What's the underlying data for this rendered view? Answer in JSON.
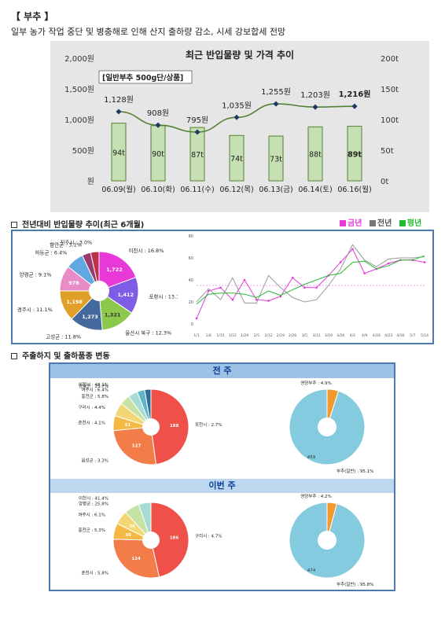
{
  "header": {
    "title": "【 부추 】",
    "subtitle": "일부 농가 작업 중단 및 병충해로 인해 산지 출하량 감소, 시세 강보합세 전망"
  },
  "chart_main": {
    "title": "최근 반입물량 및 가격 추이",
    "note": "[일반부추 500g단/상품]",
    "left_ticks": [
      "2,000원",
      "1,500원",
      "1,000원",
      "500원",
      "원"
    ],
    "right_ticks": [
      "200t",
      "150t",
      "100t",
      "50t",
      "0t"
    ],
    "price_labels": [
      "1,128원",
      "908원",
      "795원",
      "1,035원",
      "1,255원",
      "1,203원",
      "1,216원"
    ],
    "volume_labels": [
      "94t",
      "90t",
      "87t",
      "74t",
      "73t",
      "88t",
      "89t"
    ]
  },
  "section2": {
    "heading": "전년대비 반입물량 추이(최근 6개월)",
    "legend": [
      "금년",
      "전년",
      "평년"
    ],
    "pie_labels": [
      "이천시 : 16.8%",
      "포항시 : 13.1%",
      "울산시 북구 : 12.3%",
      "고성군 : 11.8%",
      "경주시 : 11.1%",
      "양평군 : 9.1%",
      "하동군 : 6.4%",
      "함안군 : 3.1%",
      "진주시 : 3.0%"
    ],
    "pie_values": [
      "1,722",
      "1,412",
      "1,321",
      "1,273",
      "1,198",
      "978"
    ],
    "line_y_ticks": [
      "80",
      "60",
      "40",
      "20",
      "0"
    ],
    "line_x_ticks": [
      "1/1",
      "1/8",
      "1/15",
      "1/22",
      "1/29",
      "2/5",
      "2/12",
      "2/19",
      "2/26",
      "3/5",
      "3/12",
      "3/19",
      "3/26",
      "4/2",
      "4/9",
      "4/16",
      "4/23",
      "4/30",
      "5/7",
      "5/14"
    ]
  },
  "section3": {
    "heading": "주출하지 및 출하품종 변동",
    "band_prev": "전 주",
    "band_this": "이번 주",
    "prev_pie_labels": [
      "포천시 : 2.7%",
      "음성군 : 3.3%",
      "춘천시 : 4.1%",
      "구리시 : 4.4%",
      "홍천군 : 5.8%",
      "여주시 : 6.4%",
      "양평군 : 25.7%",
      "이천시 : 48.1%"
    ],
    "prev_pie_values": [
      "188",
      "127",
      "51"
    ],
    "prev_variety_labels": [
      "영양부추 : 4.9%",
      "부추(일반) : 95.1%"
    ],
    "prev_variety_value": "459",
    "this_pie_labels": [
      "구리시 : 4.7%",
      "춘천시 : 5.8%",
      "홍천군 : 5.3%",
      "여주시 : 6.1%",
      "양평군 : 25.8%",
      "이천시 : 41.4%"
    ],
    "this_pie_values": [
      "186",
      "124",
      "39",
      "36"
    ],
    "this_variety_labels": [
      "영양부추 : 4.2%",
      "부추(일반) : 95.8%"
    ],
    "this_variety_value": "474"
  },
  "chart_data": [
    {
      "type": "bar",
      "title": "최근 반입물량 및 가격 추이",
      "categories": [
        "06.09(월)",
        "06.10(화)",
        "06.11(수)",
        "06.12(목)",
        "06.13(금)",
        "06.14(토)",
        "06.16(월)"
      ],
      "series": [
        {
          "values": [
            94,
            90,
            87,
            74,
            73,
            88,
            89
          ]
        },
        {
          "values": [
            1128,
            908,
            795,
            1035,
            1255,
            1203,
            1216
          ]
        }
      ],
      "ylim_left": [
        0,
        2000
      ],
      "ylim_right": [
        0,
        200
      ]
    },
    {
      "type": "pie",
      "categories": [
        "이천시",
        "포항시",
        "울산시 북구",
        "고성군",
        "경주시",
        "양평군",
        "하동군",
        "함안군",
        "진주시"
      ],
      "values": [
        16.8,
        13.1,
        12.3,
        11.8,
        11.1,
        9.1,
        6.4,
        3.1,
        3.0
      ]
    },
    {
      "type": "line",
      "series": [
        {
          "name": "금년",
          "values": [
            5,
            30,
            33,
            22,
            40,
            22,
            21,
            25,
            42,
            33,
            33,
            44,
            56,
            68,
            46,
            50,
            55,
            58,
            58,
            56
          ]
        },
        {
          "name": "전년",
          "values": [
            20,
            32,
            22,
            42,
            19,
            19,
            44,
            33,
            24,
            20,
            22,
            35,
            50,
            72,
            58,
            52,
            59,
            60,
            60,
            61
          ]
        },
        {
          "name": "평년",
          "values": [
            18,
            27,
            28,
            28,
            27,
            24,
            30,
            26,
            31,
            36,
            40,
            44,
            46,
            56,
            57,
            50,
            53,
            58,
            58,
            62
          ]
        }
      ],
      "ylim": [
        0,
        80
      ]
    },
    {
      "type": "pie",
      "categories": [
        "이천시",
        "양평군",
        "여주시",
        "홍천군",
        "구리시",
        "춘천시",
        "음성군",
        "포천시"
      ],
      "values": [
        48.1,
        25.7,
        6.4,
        5.8,
        4.4,
        4.1,
        3.3,
        2.7
      ]
    },
    {
      "type": "pie",
      "categories": [
        "영양부추",
        "부추(일반)"
      ],
      "values": [
        4.9,
        95.1
      ]
    },
    {
      "type": "pie",
      "categories": [
        "이천시",
        "양평군",
        "여주시",
        "홍천군",
        "춘천시",
        "구리시"
      ],
      "values": [
        41.4,
        25.8,
        6.1,
        5.3,
        5.8,
        4.7
      ]
    },
    {
      "type": "pie",
      "categories": [
        "영양부추",
        "부추(일반)"
      ],
      "values": [
        4.2,
        95.8
      ]
    }
  ]
}
